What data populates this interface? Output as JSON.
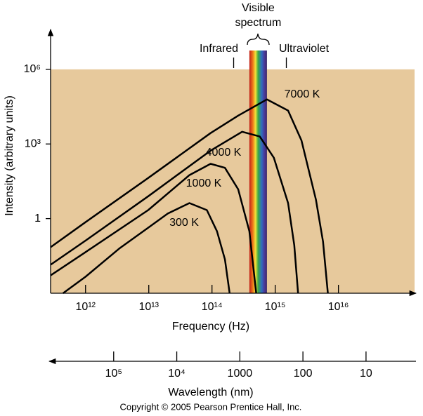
{
  "chart_data": {
    "type": "line",
    "xlabel": "Frequency (Hz)",
    "ylabel": "Intensity (arbitrary units)",
    "xscale": "log",
    "yscale": "log",
    "xlim": [
      280000000000.0,
      1.6e+17
    ],
    "ylim": [
      0.001,
      33000000.0
    ],
    "xticks": [
      {
        "value": 1000000000000.0,
        "label": "10¹²"
      },
      {
        "value": 10000000000000.0,
        "label": "10¹³"
      },
      {
        "value": 100000000000000.0,
        "label": "10¹⁴"
      },
      {
        "value": 1000000000000000.0,
        "label": "10¹⁵"
      },
      {
        "value": 1e+16,
        "label": "10¹⁶"
      }
    ],
    "yticks": [
      {
        "value": 1000000.0,
        "label": "10⁶"
      },
      {
        "value": 1000,
        "label": "10³"
      },
      1
    ],
    "background_color": "#e7c99c",
    "series": [
      {
        "name": "7000 K",
        "color": "#000000",
        "x": [
          280000000000.0,
          1000000000000.0,
          9800000000000.0,
          95000000000000.0,
          260000000000000.0,
          740000000000000.0,
          1600000000000000.0,
          2600000000000000.0,
          4400000000000000.0,
          5700000000000000.0,
          6800000000000000.0
        ],
        "values": [
          0.071,
          0.72,
          43,
          2750,
          13800,
          62000,
          22000,
          1400,
          5.8,
          0.12,
          0.001
        ]
      },
      {
        "name": "4000 K",
        "color": "#000000",
        "x": [
          280000000000.0,
          1000000000000.0,
          9800000000000.0,
          95000000000000.0,
          300000000000000.0,
          570000000000000.0,
          950000000000000.0,
          1600000000000000.0,
          2000000000000000.0,
          2300000000000000.0
        ],
        "values": [
          0.014,
          0.13,
          7.9,
          540,
          3100,
          2000,
          280,
          4.2,
          0.085,
          0.001
        ]
      },
      {
        "name": "1000 K",
        "color": "#000000",
        "x": [
          280000000000.0,
          1000000000000.0,
          9800000000000.0,
          44000000000000.0,
          95000000000000.0,
          160000000000000.0,
          260000000000000.0,
          390000000000000.0,
          500000000000000.0
        ],
        "values": [
          0.0052,
          0.045,
          2.2,
          56,
          160,
          110,
          15,
          0.31,
          0.001
        ]
      },
      {
        "name": "300 K",
        "color": "#000000",
        "x": [
          440000000000.0,
          1000000000000.0,
          3400000000000.0,
          9800000000000.0,
          20000000000000.0,
          44000000000000.0,
          83000000000000.0,
          120000000000000.0,
          160000000000000.0,
          190000000000000.0
        ],
        "values": [
          0.001,
          0.0046,
          0.062,
          0.43,
          1.6,
          4.2,
          2.2,
          0.31,
          0.023,
          0.001
        ]
      }
    ],
    "band": {
      "label": [
        "Visible",
        "spectrum"
      ],
      "x": [
        390000000000000.0,
        740000000000000.0
      ]
    },
    "markers": [
      {
        "label": "Infrared",
        "x": 220000000000000.0
      },
      {
        "label": "Ultraviolet",
        "x": 1500000000000000.0
      }
    ],
    "x2label": "Wavelength (nm)",
    "x2lim": [
      1000000.0,
      1.7
    ],
    "x2ticks": [
      {
        "value": 100000,
        "label": "10⁵"
      },
      {
        "value": 10000,
        "label": "10⁴"
      },
      1000,
      100,
      10
    ],
    "credit": "Copyright © 2005 Pearson Prentice Hall, Inc."
  }
}
